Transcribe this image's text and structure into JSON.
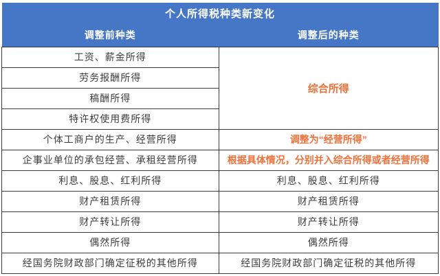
{
  "title": "个人所得税种类新变化",
  "columns": {
    "before": "调整前种类",
    "after": "调整后的种类"
  },
  "colors": {
    "header_bg": "#4577c6",
    "header_text": "#ffffff",
    "highlight_orange": "#f0703a",
    "border": "#3a3a3a",
    "body_text": "#3d3d3d"
  },
  "rows": [
    {
      "left": "工资、薪金所得",
      "right": {
        "text": "综合所得",
        "rowspan": 4,
        "highlight": true,
        "merged": true
      }
    },
    {
      "left": "劳务报酬所得"
    },
    {
      "left": "稿酬所得"
    },
    {
      "left": "特许权使用费所得"
    },
    {
      "left": "个体工商户的生产、经营所得",
      "right": {
        "text": "调整为“经营所得”",
        "highlight": true
      }
    },
    {
      "left": "企事业单位的承包经营、承租经营所得",
      "right": {
        "text": "根据具体情况，分别并入综合所得或者经营所得",
        "highlight": true
      }
    },
    {
      "left": "利息、股息、红利所得",
      "right": {
        "text": "利息、股息、红利所得"
      }
    },
    {
      "left": "财产租赁所得",
      "right": {
        "text": "财产租赁所得"
      }
    },
    {
      "left": "财产转让所得",
      "right": {
        "text": "财产转让所得"
      }
    },
    {
      "left": "偶然所得",
      "right": {
        "text": "偶然所得"
      }
    },
    {
      "left": "经国务院财政部门确定征税的其他所得",
      "right": {
        "text": "经国务院财政部门确定征税的其他所得"
      }
    }
  ]
}
